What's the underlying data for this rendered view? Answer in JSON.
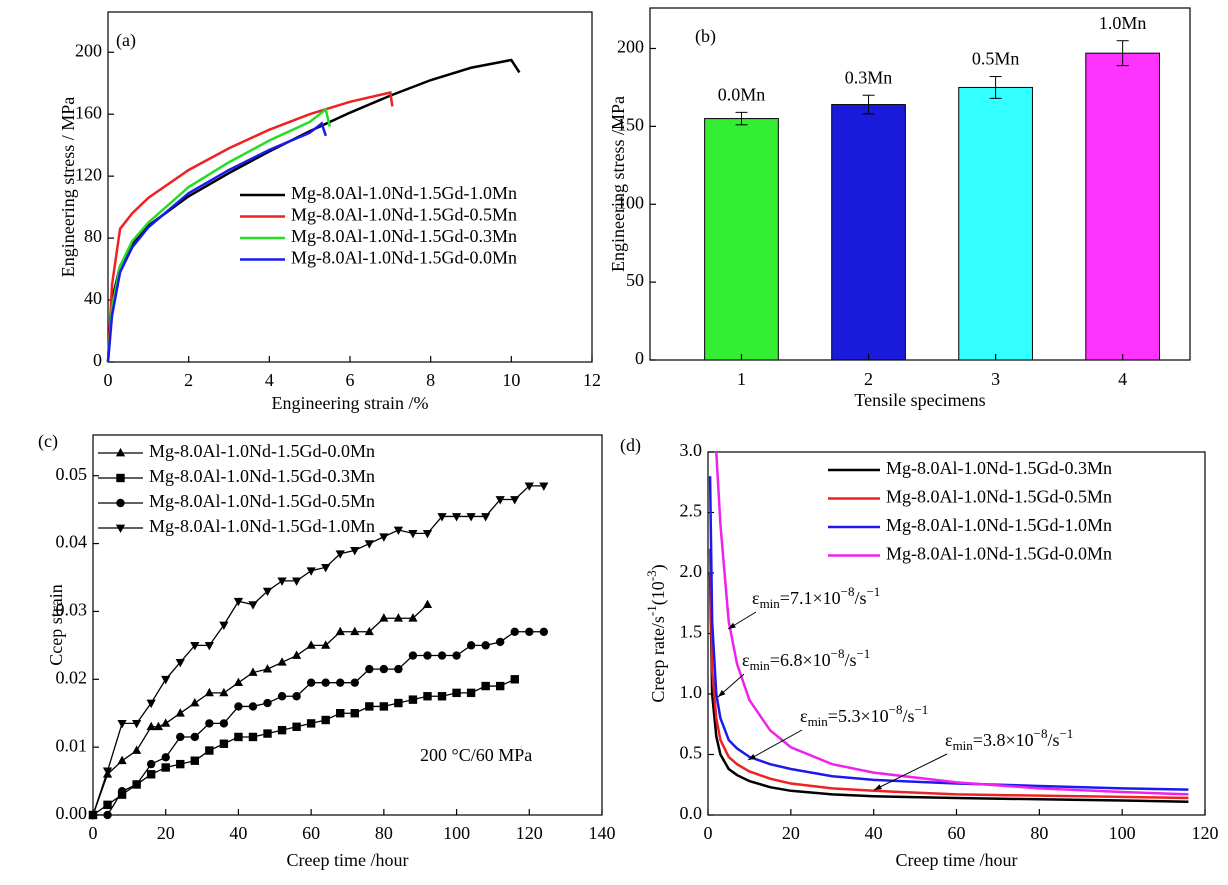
{
  "chart_data": [
    {
      "type": "line",
      "panel_label": "(a)",
      "xlabel": "Engineering strain /%",
      "ylabel": "Engineering stress / MPa",
      "xlim": [
        0,
        12
      ],
      "ylim": [
        0,
        226
      ],
      "xticks": [
        0,
        2,
        4,
        6,
        8,
        10,
        12
      ],
      "yticks": [
        0,
        40,
        80,
        120,
        160,
        200
      ],
      "series": [
        {
          "name": "Mg-8.0Al-1.0Nd-1.5Gd-1.0Mn",
          "color": "#000000",
          "x": [
            0,
            0.1,
            0.3,
            0.6,
            1,
            2,
            3,
            4,
            5,
            6,
            7,
            8,
            9,
            10,
            10.2
          ],
          "values": [
            0,
            40,
            62,
            76,
            88,
            107,
            122,
            136,
            149,
            161,
            172,
            182,
            190,
            195,
            187
          ]
        },
        {
          "name": "Mg-8.0Al-1.0Nd-1.5Gd-0.5Mn",
          "color": "#ee2222",
          "x": [
            0,
            0.1,
            0.3,
            0.6,
            1,
            2,
            3,
            4,
            5,
            6,
            7,
            7.05
          ],
          "values": [
            0,
            50,
            86,
            96,
            106,
            124,
            138,
            150,
            160,
            168,
            174,
            165
          ]
        },
        {
          "name": "Mg-8.0Al-1.0Nd-1.5Gd-0.3Mn",
          "color": "#22dd22",
          "x": [
            0,
            0.1,
            0.3,
            0.6,
            1,
            2,
            3,
            4,
            5,
            5.4,
            5.5
          ],
          "values": [
            0,
            35,
            62,
            78,
            90,
            113,
            129,
            143,
            155,
            163,
            152
          ]
        },
        {
          "name": "Mg-8.0Al-1.0Nd-1.5Gd-0.0Mn",
          "color": "#1a1aee",
          "x": [
            0,
            0.1,
            0.3,
            0.6,
            1,
            2,
            3,
            4,
            5,
            5.3,
            5.4
          ],
          "values": [
            0,
            30,
            58,
            74,
            87,
            109,
            124,
            137,
            148,
            154,
            146
          ]
        }
      ]
    },
    {
      "type": "bar",
      "panel_label": "(b)",
      "xlabel": "Tensile specimens",
      "ylabel": "Engineering stress /MPa",
      "ylim": [
        0,
        226
      ],
      "yticks": [
        0,
        50,
        100,
        150,
        200
      ],
      "categories": [
        "1",
        "2",
        "3",
        "4"
      ],
      "values": [
        155,
        164,
        175,
        197
      ],
      "errors": [
        4,
        6,
        7,
        8
      ],
      "bar_labels": [
        "0.0Mn",
        "0.3Mn",
        "0.5Mn",
        "1.0Mn"
      ],
      "colors": [
        "#33ee33",
        "#1a1adb",
        "#33ffff",
        "#ff33ff"
      ]
    },
    {
      "type": "line",
      "panel_label": "(c)",
      "xlabel": "Creep time /hour",
      "ylabel": "Ccep strain",
      "annotation": "200 °C/60 MPa",
      "xlim": [
        0,
        140
      ],
      "ylim": [
        0,
        0.056
      ],
      "xticks": [
        0,
        20,
        40,
        60,
        80,
        100,
        120,
        140
      ],
      "yticks": [
        {
          "value": 0,
          "label": "0.00"
        },
        0.01,
        0.02,
        0.03,
        0.04,
        0.05
      ],
      "series": [
        {
          "name": "Mg-8.0Al-1.0Nd-1.5Gd-0.0Mn",
          "color": "#000000",
          "marker": "triangle-up",
          "x": [
            0,
            4,
            8,
            12,
            16,
            18,
            20,
            24,
            28,
            32,
            36,
            40,
            44,
            48,
            52,
            56,
            60,
            64,
            68,
            72,
            76,
            80,
            84,
            88,
            92
          ],
          "values": [
            0,
            0.006,
            0.008,
            0.0095,
            0.013,
            0.013,
            0.0135,
            0.015,
            0.0165,
            0.018,
            0.018,
            0.0195,
            0.021,
            0.0215,
            0.0225,
            0.0235,
            0.025,
            0.025,
            0.027,
            0.027,
            0.027,
            0.029,
            0.029,
            0.029,
            0.031
          ]
        },
        {
          "name": "Mg-8.0Al-1.0Nd-1.5Gd-0.3Mn",
          "color": "#000000",
          "marker": "square",
          "x": [
            0,
            4,
            8,
            12,
            16,
            20,
            24,
            28,
            32,
            36,
            40,
            44,
            48,
            52,
            56,
            60,
            64,
            68,
            72,
            76,
            80,
            84,
            88,
            92,
            96,
            100,
            104,
            108,
            112,
            116
          ],
          "values": [
            0,
            0.0015,
            0.003,
            0.0045,
            0.006,
            0.007,
            0.0075,
            0.008,
            0.0095,
            0.0105,
            0.0115,
            0.0115,
            0.012,
            0.0125,
            0.013,
            0.0135,
            0.014,
            0.015,
            0.015,
            0.016,
            0.016,
            0.0165,
            0.017,
            0.0175,
            0.0175,
            0.018,
            0.018,
            0.019,
            0.019,
            0.02
          ]
        },
        {
          "name": "Mg-8.0Al-1.0Nd-1.5Gd-0.5Mn",
          "color": "#000000",
          "marker": "circle",
          "x": [
            0,
            4,
            8,
            12,
            16,
            20,
            24,
            28,
            32,
            36,
            40,
            44,
            48,
            52,
            56,
            60,
            64,
            68,
            72,
            76,
            80,
            84,
            88,
            92,
            96,
            100,
            104,
            108,
            112,
            116,
            120,
            124
          ],
          "values": [
            0,
            0,
            0.0035,
            0.0045,
            0.0075,
            0.0085,
            0.0115,
            0.0115,
            0.0135,
            0.0135,
            0.016,
            0.016,
            0.0165,
            0.0175,
            0.0175,
            0.0195,
            0.0195,
            0.0195,
            0.0195,
            0.0215,
            0.0215,
            0.0215,
            0.0235,
            0.0235,
            0.0235,
            0.0235,
            0.025,
            0.025,
            0.0255,
            0.027,
            0.027,
            0.027
          ]
        },
        {
          "name": "Mg-8.0Al-1.0Nd-1.5Gd-1.0Mn",
          "color": "#000000",
          "marker": "triangle-down",
          "x": [
            0,
            4,
            8,
            12,
            16,
            20,
            24,
            28,
            32,
            36,
            40,
            44,
            48,
            52,
            56,
            60,
            64,
            68,
            72,
            76,
            80,
            84,
            88,
            92,
            96,
            100,
            104,
            108,
            112,
            116,
            120,
            124
          ],
          "values": [
            0,
            0.0065,
            0.0135,
            0.0135,
            0.0165,
            0.02,
            0.0225,
            0.025,
            0.025,
            0.028,
            0.0315,
            0.031,
            0.033,
            0.0345,
            0.0345,
            0.036,
            0.0365,
            0.0385,
            0.039,
            0.04,
            0.041,
            0.042,
            0.0415,
            0.0415,
            0.044,
            0.044,
            0.044,
            0.044,
            0.0465,
            0.0465,
            0.0485,
            0.0485
          ]
        }
      ]
    },
    {
      "type": "line",
      "panel_label": "(d)",
      "xlabel": "Creep time /hour",
      "ylabel": [
        {
          "text": "Creep rate/s"
        },
        {
          "sup": "-1"
        },
        {
          "text": "(10"
        },
        {
          "sup": "-3"
        },
        {
          "text": ")"
        }
      ],
      "xlim": [
        0,
        120
      ],
      "ylim": [
        0,
        3
      ],
      "xticks": [
        0,
        20,
        40,
        60,
        80,
        100,
        120
      ],
      "yticks": [
        {
          "value": 0,
          "label": "0.0"
        },
        0.5,
        {
          "value": 1,
          "label": "1.0"
        },
        1.5,
        {
          "value": 2,
          "label": "2.0"
        },
        2.5,
        {
          "value": 3,
          "label": "3.0"
        }
      ],
      "x": [
        0.5,
        1,
        2,
        3,
        5,
        7,
        10,
        15,
        20,
        30,
        40,
        60,
        80,
        100,
        116
      ],
      "series": [
        {
          "name": "Mg-8.0Al-1.0Nd-1.5Gd-0.3Mn",
          "color": "#000000",
          "values": [
            2.0,
            1.0,
            0.65,
            0.5,
            0.38,
            0.33,
            0.28,
            0.23,
            0.2,
            0.17,
            0.155,
            0.14,
            0.13,
            0.12,
            0.11
          ]
        },
        {
          "name": "Mg-8.0Al-1.0Nd-1.5Gd-0.5Mn",
          "color": "#ee2222",
          "values": [
            2.2,
            1.2,
            0.8,
            0.62,
            0.48,
            0.42,
            0.36,
            0.3,
            0.26,
            0.22,
            0.2,
            0.17,
            0.16,
            0.15,
            0.14
          ]
        },
        {
          "name": "Mg-8.0Al-1.0Nd-1.5Gd-1.0Mn",
          "color": "#1a1aee",
          "values": [
            2.8,
            1.6,
            1.0,
            0.8,
            0.62,
            0.55,
            0.48,
            0.42,
            0.38,
            0.32,
            0.29,
            0.26,
            0.24,
            0.22,
            0.21
          ]
        },
        {
          "name": "Mg-8.0Al-1.0Nd-1.5Gd-0.0Mn",
          "color": "#ee22ee",
          "values": [
            null,
            null,
            3.0,
            2.4,
            1.6,
            1.25,
            0.95,
            0.7,
            0.56,
            0.42,
            0.35,
            0.27,
            0.22,
            0.19,
            0.17
          ]
        }
      ],
      "annotations": [
        [
          {
            "text": "ε"
          },
          {
            "sub": "min"
          },
          {
            "text": "=7.1×10"
          },
          {
            "sup": "−8"
          },
          {
            "text": "/s"
          },
          {
            "sup": "−1"
          }
        ],
        [
          {
            "text": "ε"
          },
          {
            "sub": "min"
          },
          {
            "text": "=6.8×10"
          },
          {
            "sup": "−8"
          },
          {
            "text": "/s"
          },
          {
            "sup": "−1"
          }
        ],
        [
          {
            "text": "ε"
          },
          {
            "sub": "min"
          },
          {
            "text": "=5.3×10"
          },
          {
            "sup": "−8"
          },
          {
            "text": "/s"
          },
          {
            "sup": "−1"
          }
        ],
        [
          {
            "text": "ε"
          },
          {
            "sub": "min"
          },
          {
            "text": "=3.8×10"
          },
          {
            "sup": "−8"
          },
          {
            "text": "/s"
          },
          {
            "sup": "−1"
          }
        ]
      ]
    }
  ]
}
